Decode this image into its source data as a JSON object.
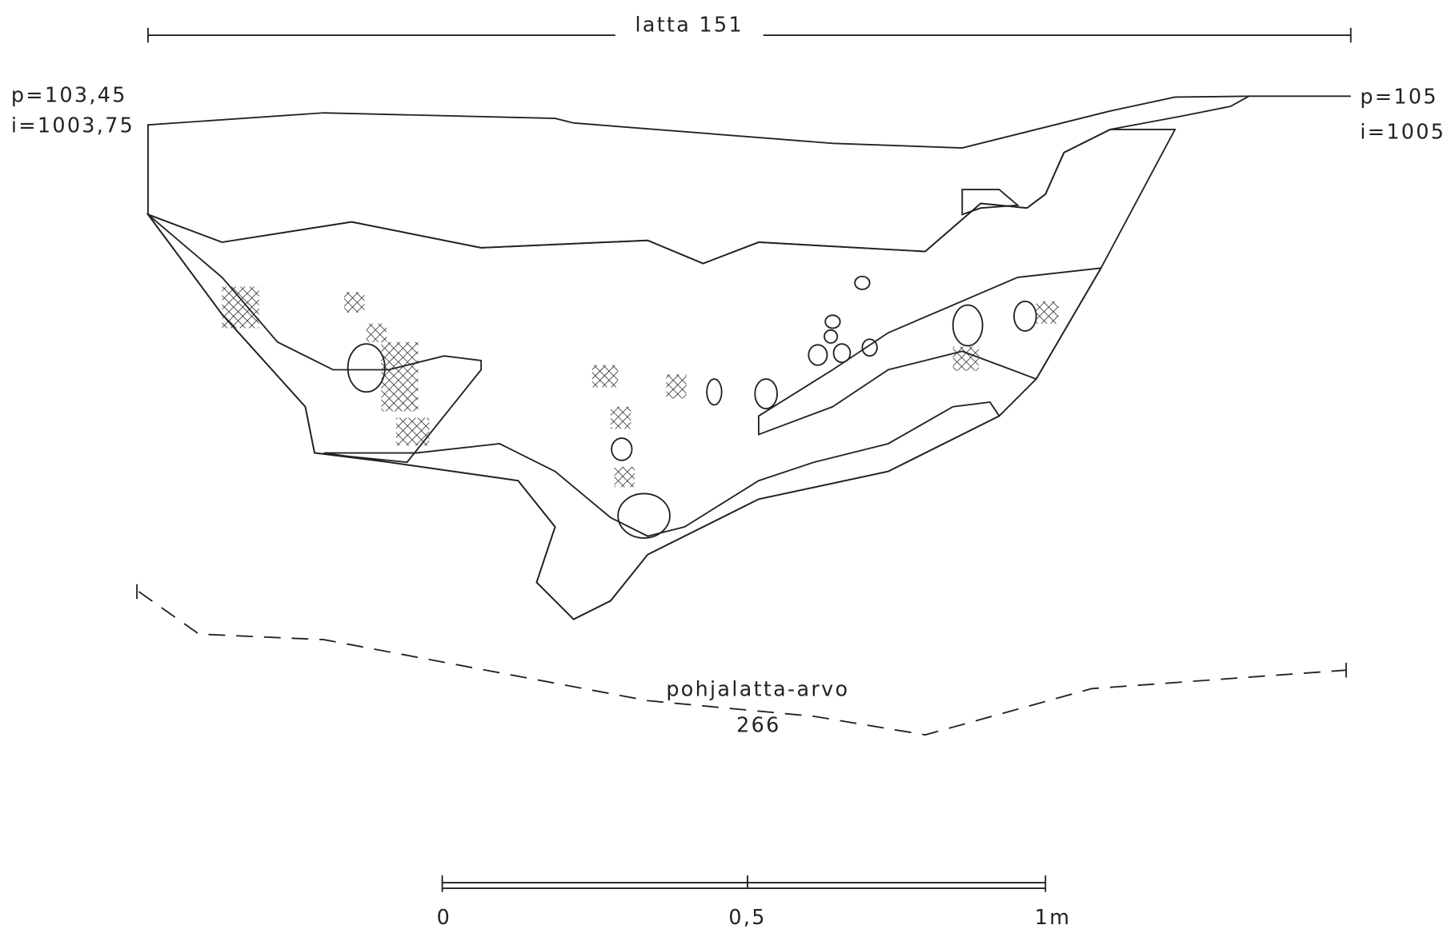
{
  "top_line": {
    "label": "latta 151"
  },
  "left_point": {
    "p": "p=103,45",
    "i": "i=1003,75"
  },
  "right_point": {
    "p": "p=105",
    "i": "i=1005"
  },
  "base_line": {
    "label": "pohjalatta-arvo",
    "value": "266"
  },
  "scale_bar": {
    "labels": [
      "0",
      "0,5",
      "1m"
    ]
  }
}
